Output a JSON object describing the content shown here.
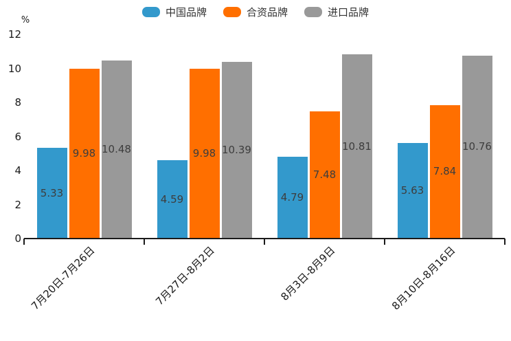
{
  "chart_data": {
    "type": "bar",
    "title": "",
    "ylabel": "%",
    "xlabel": "",
    "categories": [
      "7月20日-7月26日",
      "7月27日-8月2日",
      "8月3日-8月9日",
      "8月10日-8月16日"
    ],
    "series": [
      {
        "name": "中国品牌",
        "color": "#3399CC",
        "values": [
          5.33,
          4.59,
          4.79,
          5.63
        ]
      },
      {
        "name": "合资品牌",
        "color": "#FF6F00",
        "values": [
          9.98,
          9.98,
          7.48,
          7.84
        ]
      },
      {
        "name": "进口品牌",
        "color": "#999999",
        "values": [
          10.48,
          10.39,
          10.81,
          10.76
        ]
      }
    ],
    "y_ticks": [
      0,
      2,
      4,
      6,
      8,
      10,
      12
    ],
    "ylim": [
      0,
      12
    ],
    "legend_position": "top",
    "grid": false,
    "bar_value_labels_shown": true
  },
  "colors": {
    "axis": "#1a1a1a",
    "tick_label": "#1a1a1a",
    "bar_value_label": "#3d3d3d",
    "legend_label": "#333333",
    "background": "#ffffff"
  }
}
